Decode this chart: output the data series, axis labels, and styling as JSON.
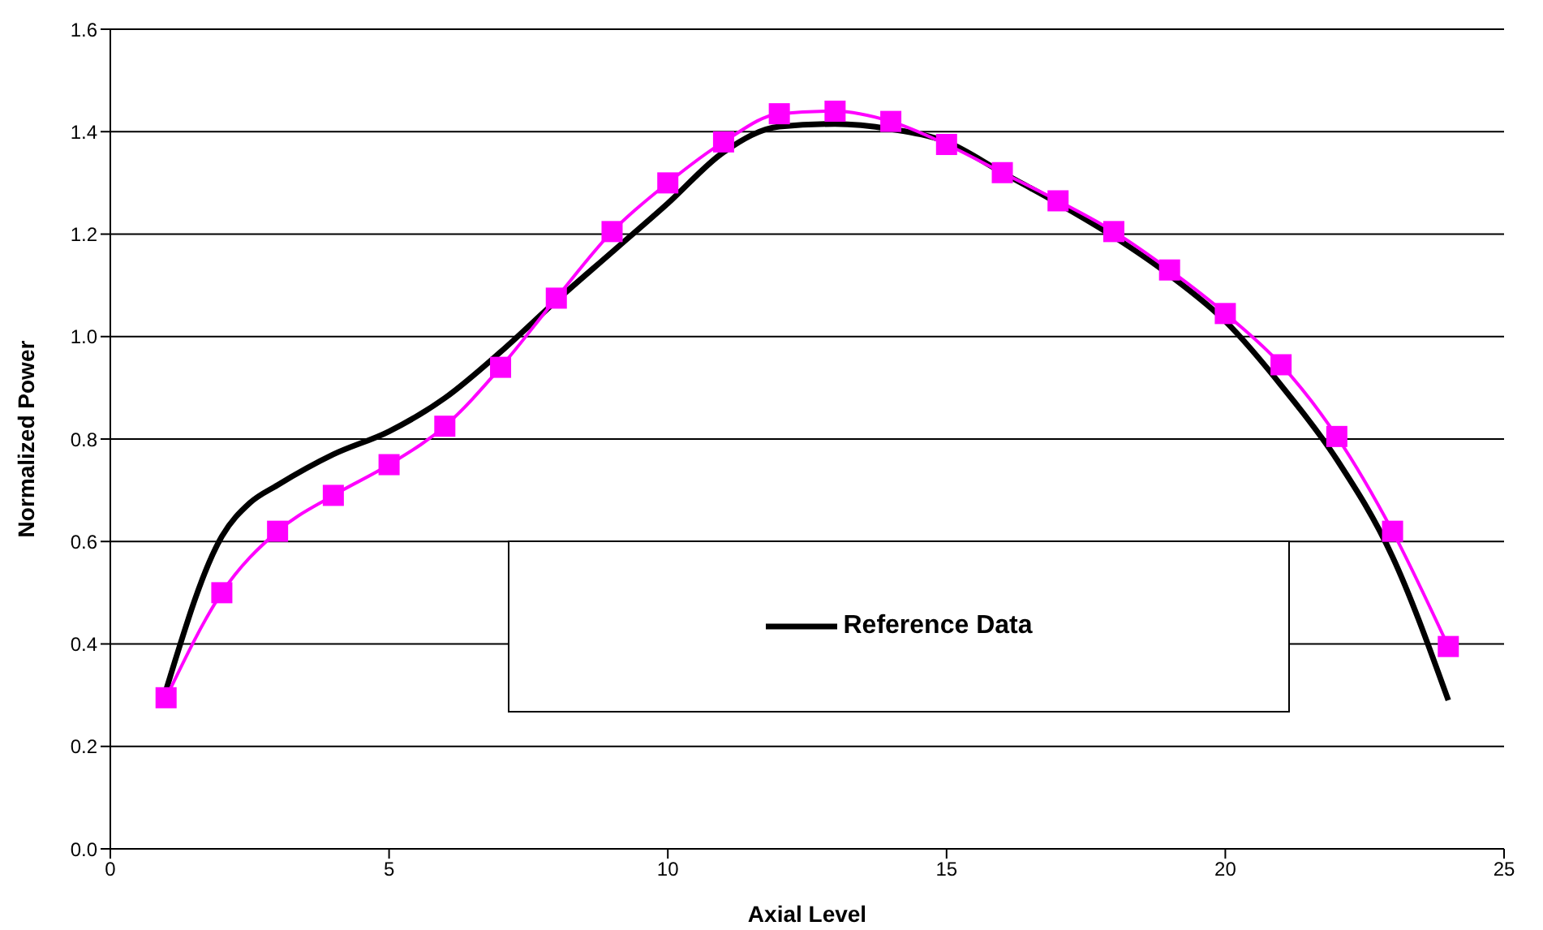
{
  "chart_data": {
    "type": "line",
    "xlabel": "Axial Level",
    "ylabel": "Normalized Power",
    "xlim": [
      0,
      25
    ],
    "xticks": [
      0,
      5,
      10,
      15,
      20,
      25
    ],
    "ylim": [
      0,
      1.6
    ],
    "yticks": [
      {
        "value": 0,
        "label": "0.0"
      },
      0.2,
      0.4,
      0.6,
      0.8,
      {
        "value": 1,
        "label": "1.0"
      },
      1.2,
      1.4,
      1.6
    ],
    "grid": "y",
    "legend": "bottom",
    "series": [
      {
        "name": "Reference Data",
        "color": "#000000",
        "marker": "none",
        "x": [
          1,
          2,
          2.5,
          3,
          4,
          5,
          6,
          7,
          8,
          9,
          10,
          11,
          12,
          13,
          14,
          15,
          16,
          17,
          18,
          19,
          20,
          21,
          22,
          23,
          24
        ],
        "values": [
          0.31,
          0.61,
          0.675,
          0.71,
          0.77,
          0.815,
          0.88,
          0.97,
          1.07,
          1.165,
          1.26,
          1.36,
          1.41,
          1.415,
          1.405,
          1.38,
          1.32,
          1.26,
          1.195,
          1.12,
          1.03,
          0.905,
          0.76,
          0.57,
          0.29
        ]
      },
      {
        "color": "#ff00ff",
        "marker": "square",
        "x": [
          1,
          2,
          3,
          4,
          5,
          6,
          7,
          8,
          9,
          10,
          11,
          12,
          13,
          14,
          15,
          16,
          17,
          18,
          19,
          20,
          21,
          22,
          23,
          24
        ],
        "values": [
          0.295,
          0.5,
          0.62,
          0.69,
          0.75,
          0.825,
          0.94,
          1.075,
          1.205,
          1.3,
          1.38,
          1.435,
          1.44,
          1.42,
          1.375,
          1.32,
          1.265,
          1.205,
          1.13,
          1.045,
          0.945,
          0.805,
          0.62,
          0.395
        ]
      }
    ]
  }
}
